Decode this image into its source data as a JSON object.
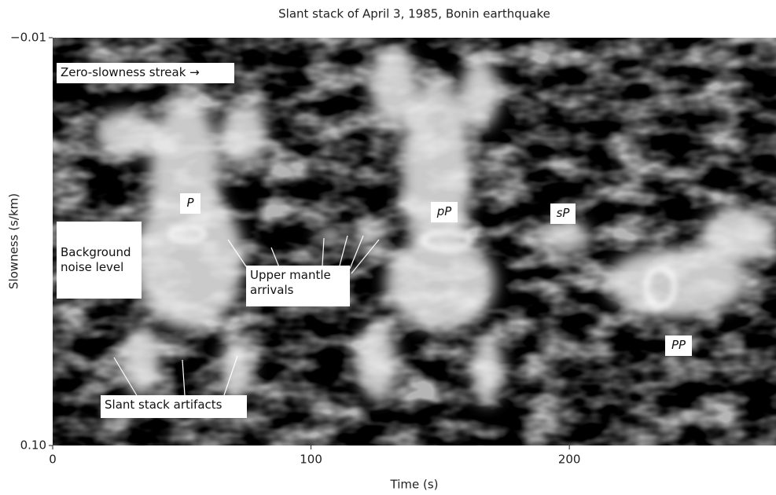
{
  "chart_data": {
    "type": "image",
    "title": "Slant stack of April 3, 1985, Bonin earthquake",
    "xlabel": "Time (s)",
    "ylabel": "Slowness (s/km)",
    "xlim": [
      0,
      280
    ],
    "xticks": [
      0,
      100,
      200
    ],
    "ylim": [
      -0.01,
      0.1
    ],
    "yticks": [
      {
        "value": -0.01,
        "label": "−0.01"
      },
      {
        "value": 0.1,
        "label": "0.10"
      }
    ],
    "y_inverted": true,
    "annotations": [
      "Zero-slowness streak →",
      "P",
      "pP",
      "sP",
      "PP",
      "Background noise level",
      "Upper mantle arrivals",
      "Slant stack artifacts"
    ]
  }
}
